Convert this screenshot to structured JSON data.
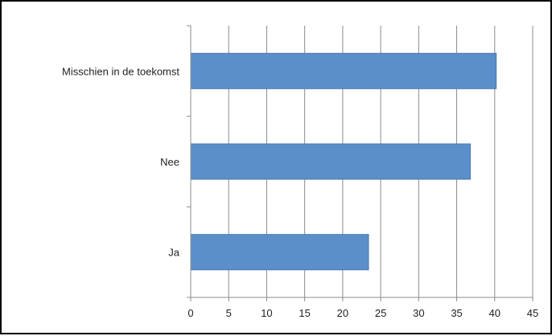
{
  "chart_data": {
    "type": "bar",
    "orientation": "horizontal",
    "categories": [
      "Misschien in de toekomst",
      "Nee",
      "Ja"
    ],
    "values": [
      40.2,
      36.8,
      23.4
    ],
    "title": "",
    "xlabel": "",
    "ylabel": "",
    "xlim": [
      0,
      45
    ],
    "xticks": [
      "0",
      "5",
      "10",
      "15",
      "20",
      "25",
      "30",
      "35",
      "40",
      "45"
    ],
    "grid": true,
    "legend": "none",
    "bar_color": "#5b8fc9"
  }
}
